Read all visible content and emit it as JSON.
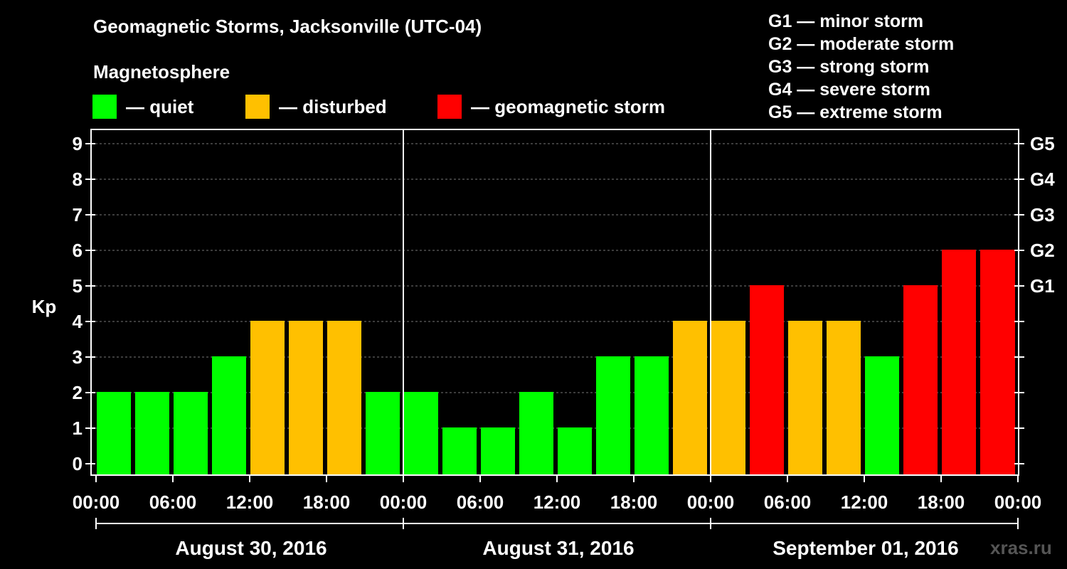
{
  "title": "Geomagnetic Storms, Jacksonville (UTC-04)",
  "legend": {
    "heading": "Magnetosphere",
    "items": [
      {
        "label": "— quiet",
        "color": "#00ff00"
      },
      {
        "label": "— disturbed",
        "color": "#ffc000"
      },
      {
        "label": "— geomagnetic storm",
        "color": "#ff0000"
      }
    ]
  },
  "g_scale": [
    "G1 — minor storm",
    "G2 — moderate storm",
    "G3 — strong storm",
    "G4 — severe storm",
    "G5 — extreme storm"
  ],
  "watermark": "xras.ru",
  "chart_data": {
    "type": "bar",
    "title": "Geomagnetic Storms, Jacksonville (UTC-04)",
    "ylabel": "Kp",
    "xlabel": "",
    "ylim": [
      0,
      9
    ],
    "y_ticks": [
      "0",
      "1",
      "2",
      "3",
      "4",
      "5",
      "6",
      "7",
      "8",
      "9"
    ],
    "right_ticks": [
      {
        "value": 5,
        "label": "G1"
      },
      {
        "value": 6,
        "label": "G2"
      },
      {
        "value": 7,
        "label": "G3"
      },
      {
        "value": 8,
        "label": "G4"
      },
      {
        "value": 9,
        "label": "G5"
      }
    ],
    "x_tick_labels": [
      "00:00",
      "06:00",
      "12:00",
      "18:00",
      "00:00",
      "06:00",
      "12:00",
      "18:00",
      "00:00",
      "06:00",
      "12:00",
      "18:00",
      "00:00"
    ],
    "x_range_hours": [
      0,
      72
    ],
    "dates": [
      "August 30, 2016",
      "August 31, 2016",
      "September 01, 2016"
    ],
    "grid": true,
    "bars": [
      {
        "start": 0,
        "end": 3,
        "value": 2
      },
      {
        "start": 3,
        "end": 6,
        "value": 2
      },
      {
        "start": 6,
        "end": 9,
        "value": 2
      },
      {
        "start": 9,
        "end": 12,
        "value": 3
      },
      {
        "start": 12,
        "end": 15,
        "value": 4
      },
      {
        "start": 15,
        "end": 18,
        "value": 4
      },
      {
        "start": 18,
        "end": 21,
        "value": 4
      },
      {
        "start": 21,
        "end": 24,
        "value": 2
      },
      {
        "start": 24,
        "end": 27,
        "value": 2
      },
      {
        "start": 27,
        "end": 30,
        "value": 1
      },
      {
        "start": 30,
        "end": 33,
        "value": 1
      },
      {
        "start": 33,
        "end": 36,
        "value": 2
      },
      {
        "start": 36,
        "end": 39,
        "value": 1
      },
      {
        "start": 39,
        "end": 42,
        "value": 3
      },
      {
        "start": 42,
        "end": 45,
        "value": 3
      },
      {
        "start": 45,
        "end": 48,
        "value": 4
      },
      {
        "start": 48,
        "end": 51,
        "value": 4
      },
      {
        "start": 51,
        "end": 54,
        "value": 5
      },
      {
        "start": 54,
        "end": 57,
        "value": 4
      },
      {
        "start": 57,
        "end": 60,
        "value": 4
      },
      {
        "start": 60,
        "end": 63,
        "value": 3
      },
      {
        "start": 63,
        "end": 66,
        "value": 5
      },
      {
        "start": 66,
        "end": 69,
        "value": 6
      },
      {
        "start": 69,
        "end": 72,
        "value": 6
      },
      {
        "start": 72,
        "end": 72,
        "value": 6
      }
    ],
    "colors": {
      "quiet": "#00ff00",
      "disturbed": "#ffc000",
      "storm": "#ff0000"
    }
  }
}
